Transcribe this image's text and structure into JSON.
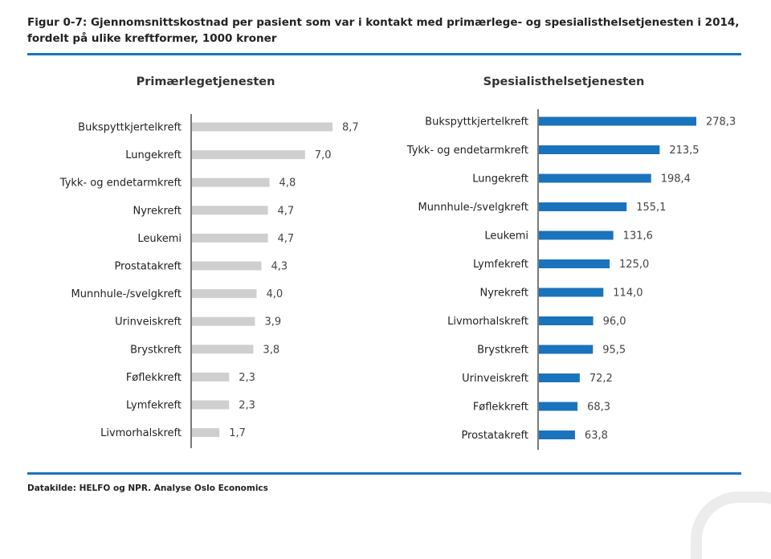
{
  "figure": {
    "title": "Figur 0-7: Gjennomsnittskostnad per pasient som var i kontakt med primærlege- og spesialisthelsetjenesten i 2014, fordelt på ulike kreftformer, 1000 kroner",
    "source": "Datakilde: HELFO og NPR. Analyse Oslo Economics",
    "colors": {
      "accent": "#1a73bd",
      "primary_bar": "#cfcfcf",
      "specialist_bar": "#1a73bd",
      "axis": "#222222"
    }
  },
  "chart_data": [
    {
      "type": "bar",
      "orientation": "horizontal",
      "title": "Primærlegetjenesten",
      "categories": [
        "Bukspyttkjertelkreft",
        "Lungekreft",
        "Tykk- og endetarmkreft",
        "Nyrekreft",
        "Leukemi",
        "Prostatakreft",
        "Munnhule-/svelgkreft",
        "Urinveiskreft",
        "Brystkreft",
        "Føflekkreft",
        "Lymfekreft",
        "Livmorhalskreft"
      ],
      "values": [
        8.7,
        7.0,
        4.8,
        4.7,
        4.7,
        4.3,
        4.0,
        3.9,
        3.8,
        2.3,
        2.3,
        1.7
      ],
      "value_labels": [
        "8,7",
        "7,0",
        "4,8",
        "4,7",
        "4,7",
        "4,3",
        "4,0",
        "3,9",
        "3,8",
        "2,3",
        "2,3",
        "1,7"
      ],
      "xlim": [
        0,
        8.7
      ],
      "grid": false
    },
    {
      "type": "bar",
      "orientation": "horizontal",
      "title": "Spesialisthelsetjenesten",
      "categories": [
        "Bukspyttkjertelkreft",
        "Tykk- og endetarmkreft",
        "Lungekreft",
        "Munnhule-/svelgkreft",
        "Leukemi",
        "Lymfekreft",
        "Nyrekreft",
        "Livmorhalskreft",
        "Brystkreft",
        "Urinveiskreft",
        "Føflekkreft",
        "Prostatakreft"
      ],
      "values": [
        278.3,
        213.5,
        198.4,
        155.1,
        131.6,
        125.0,
        114.0,
        96.0,
        95.5,
        72.2,
        68.3,
        63.8
      ],
      "value_labels": [
        "278,3",
        "213,5",
        "198,4",
        "155,1",
        "131,6",
        "125,0",
        "114,0",
        "96,0",
        "95,5",
        "72,2",
        "68,3",
        "63,8"
      ],
      "xlim": [
        0,
        278.3
      ],
      "grid": false
    }
  ]
}
